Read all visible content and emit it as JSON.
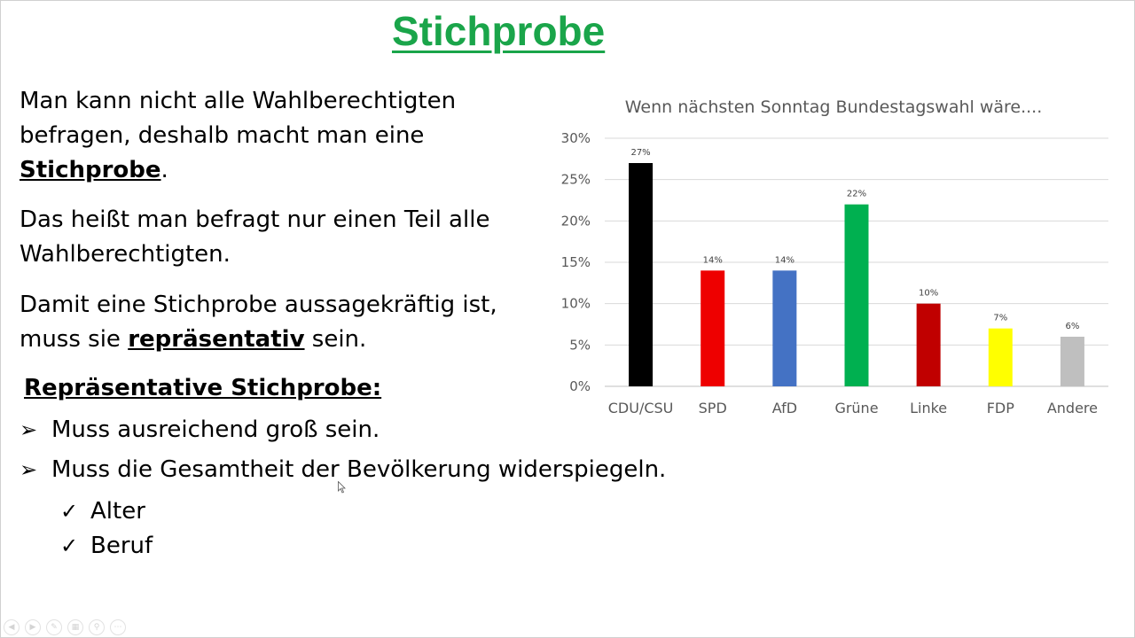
{
  "slide": {
    "title": "Stichprobe",
    "p1_text": "Man kann nicht alle Wahlberechtigten befragen, deshalb macht man eine ",
    "p1_emph": "Stichprobe",
    "p1_end": ".",
    "p2_text": "Das heißt man befragt nur einen Teil alle Wahlberechtigten.",
    "p3_text": "Damit eine Stichprobe aussagekräftig ist, muss sie ",
    "p3_emph": "repräsentativ",
    "p3_end": " sein.",
    "subheading": "Repräsentative Stichprobe:",
    "bullets": [
      "Muss ausreichend groß sein.",
      "Muss die Gesamtheit der Bevölkerung widerspiegeln."
    ],
    "checks": [
      "Alter",
      "Beruf"
    ]
  },
  "toolbar": {
    "icons": [
      "prev-icon",
      "next-icon",
      "pen-icon",
      "slides-icon",
      "zoom-icon",
      "more-icon"
    ]
  },
  "chart_data": {
    "type": "bar",
    "title": "Wenn nächsten Sonntag Bundestagswahl wäre....",
    "categories": [
      "CDU/CSU",
      "SPD",
      "AfD",
      "Grüne",
      "Linke",
      "FDP",
      "Andere"
    ],
    "values": [
      27,
      14,
      14,
      22,
      10,
      7,
      6
    ],
    "value_labels": [
      "27%",
      "14%",
      "14%",
      "22%",
      "10%",
      "7%",
      "6%"
    ],
    "colors": [
      "#000000",
      "#ee0000",
      "#4472c4",
      "#00b050",
      "#c00000",
      "#ffff00",
      "#bfbfbf"
    ],
    "ylim": [
      0,
      30
    ],
    "yticks": [
      0,
      5,
      10,
      15,
      20,
      25,
      30
    ],
    "ytick_labels": [
      "0%",
      "5%",
      "10%",
      "15%",
      "20%",
      "25%",
      "30%"
    ],
    "grid": true,
    "legend": "none"
  }
}
